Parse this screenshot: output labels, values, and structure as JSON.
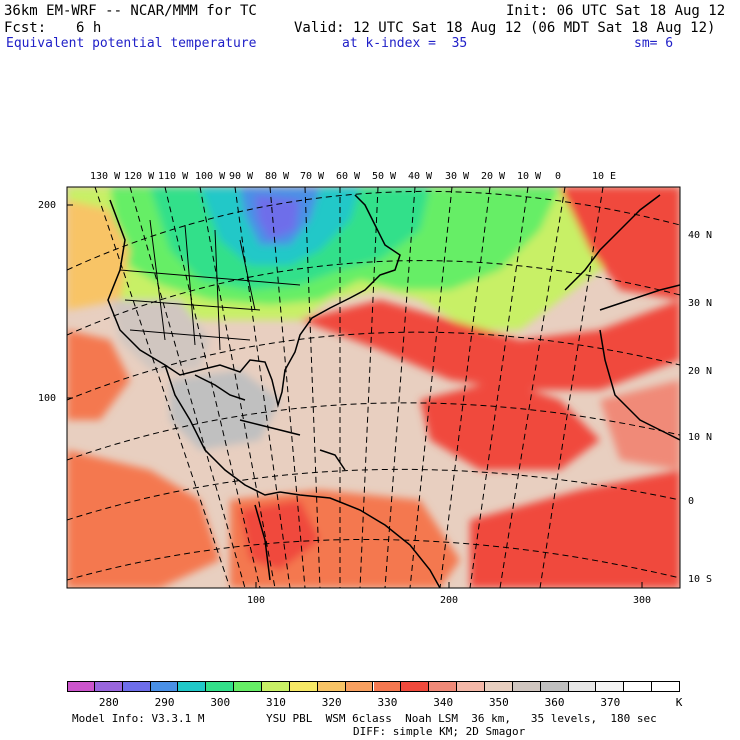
{
  "header": {
    "model": "36km EM-WRF -- NCAR/MMM for TC",
    "init": "Init: 06 UTC Sat 18 Aug 12",
    "fcst_label": "Fcst:",
    "fcst_value": "6 h",
    "valid": "Valid: 12 UTC Sat 18 Aug 12 (06 MDT Sat 18 Aug 12)",
    "field": "Equivalent potential temperature",
    "level": "at k-index =  35",
    "smoothing": "sm= 6"
  },
  "axes": {
    "top_longitudes": [
      "130 W",
      "120 W",
      "110 W",
      "100 W",
      "90 W",
      "80 W",
      "70 W",
      "60 W",
      "50 W",
      "40 W",
      "30 W",
      "20 W",
      "10 W",
      "0",
      "10 E"
    ],
    "right_latitudes": [
      "40 N",
      "30 N",
      "20 N",
      "10 N",
      "0",
      "10 S"
    ],
    "left_ticks": [
      "200",
      "100"
    ],
    "bottom_ticks": [
      "100",
      "200",
      "300"
    ]
  },
  "colorbar": {
    "labels": [
      "280",
      "290",
      "300",
      "310",
      "320",
      "330",
      "340",
      "350",
      "360",
      "370"
    ],
    "unit": "K",
    "colors": [
      "#cc55cc",
      "#9966dd",
      "#6e6eea",
      "#4a90e6",
      "#20c8c8",
      "#33e08a",
      "#66ee66",
      "#c8f066",
      "#f6e866",
      "#f8c466",
      "#f8a060",
      "#f47850",
      "#f04a3c",
      "#f08a78",
      "#f4b8a8",
      "#e8cfc0",
      "#d0c6c0",
      "#c0c0c0",
      "#e6e6e6",
      "#f4f4f4",
      "#ffffff",
      "#ffffff"
    ]
  },
  "footer": {
    "model_info": "Model Info: V3.3.1 M",
    "physics": "YSU PBL  WSM 6class  Noah LSM  36 km,   35 levels,  180 sec",
    "diffusion": "DIFF: simple KM; 2D Smagor"
  }
}
